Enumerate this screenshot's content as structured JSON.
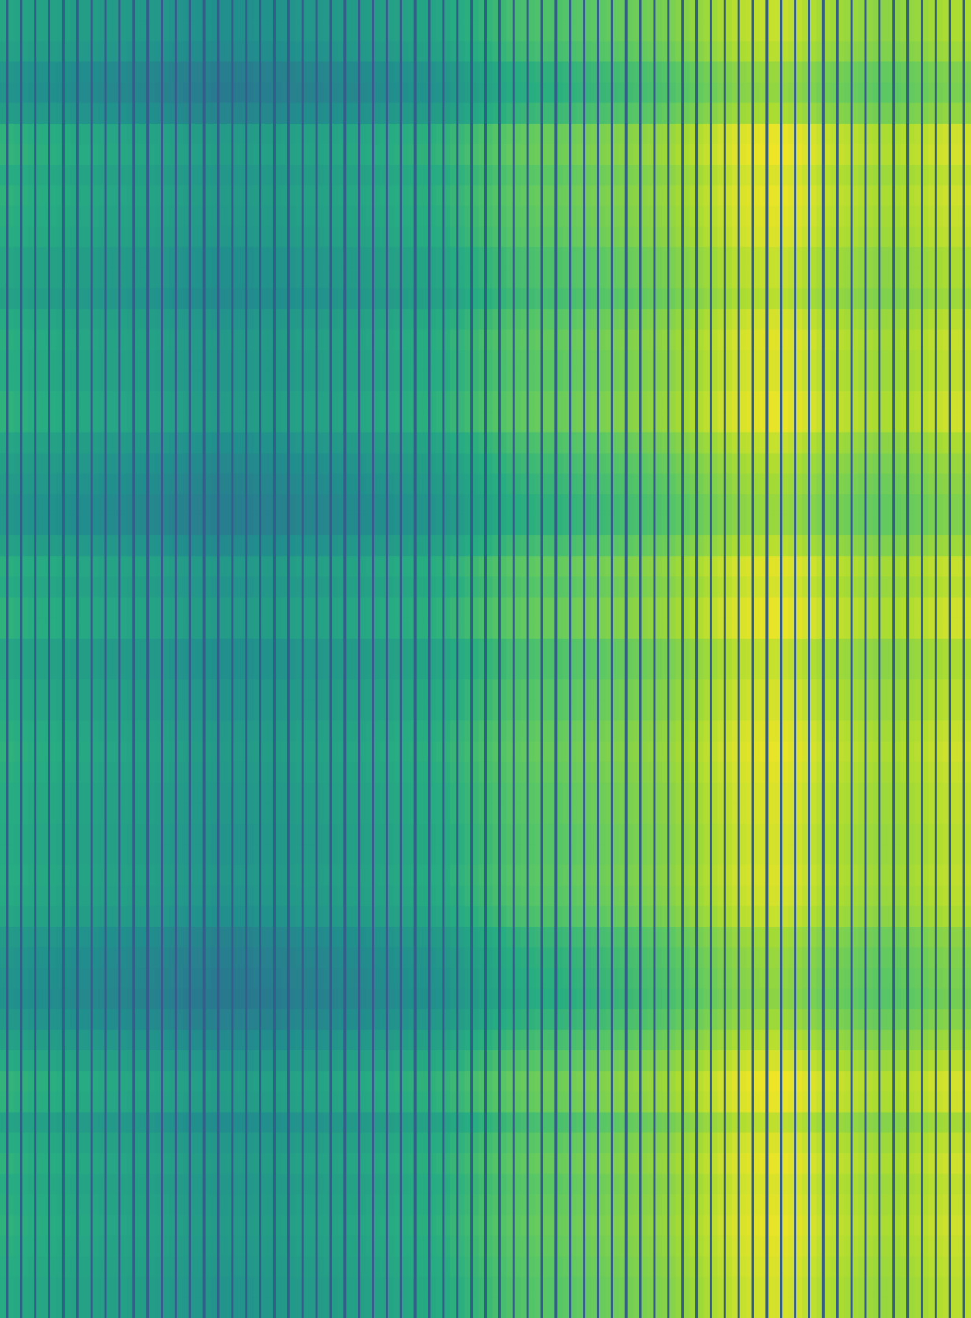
{
  "chart_data": {
    "type": "heatmap",
    "title": "",
    "xlabel": "",
    "ylabel": "",
    "colormap": "viridis",
    "value_range": [
      0,
      1
    ],
    "grid": false,
    "legend": "none",
    "column_profile": [
      0.6,
      0.59,
      0.58,
      0.58,
      0.57,
      0.56,
      0.56,
      0.55,
      0.55,
      0.54,
      0.54,
      0.53,
      0.52,
      0.51,
      0.51,
      0.5,
      0.5,
      0.5,
      0.51,
      0.51,
      0.52,
      0.53,
      0.53,
      0.54,
      0.55,
      0.55,
      0.56,
      0.57,
      0.58,
      0.59,
      0.59,
      0.6,
      0.62,
      0.64,
      0.66,
      0.68,
      0.7,
      0.71,
      0.72,
      0.72,
      0.73,
      0.74,
      0.75,
      0.76,
      0.77,
      0.78,
      0.79,
      0.8,
      0.82,
      0.84,
      0.86,
      0.88,
      0.9,
      0.91,
      0.92,
      0.92,
      0.91,
      0.89,
      0.87,
      0.86,
      0.85,
      0.84,
      0.83,
      0.83,
      0.84,
      0.85,
      0.87,
      0.88,
      0.88
    ],
    "row_profile": [
      0.0,
      0.0,
      -0.02,
      -0.07,
      -0.08,
      -0.04,
      0.05,
      0.06,
      0.03,
      0.05,
      0.04,
      0.03,
      0.0,
      0.0,
      -0.02,
      0.02,
      0.04,
      0.03,
      0.03,
      0.05,
      0.05,
      0.0,
      -0.03,
      -0.05,
      -0.07,
      -0.07,
      -0.02,
      0.04,
      0.02,
      0.05,
      0.05,
      0.0,
      0.0,
      0.02,
      0.02,
      0.04,
      0.05,
      0.04,
      0.03,
      0.03,
      0.02,
      0.02,
      0.03,
      0.02,
      0.0,
      -0.05,
      -0.07,
      -0.08,
      -0.09,
      -0.06,
      -0.02,
      0.02,
      0.06,
      0.05,
      -0.01,
      0.03,
      0.05,
      0.03,
      0.04,
      0.05,
      0.04,
      0.03,
      0.02,
      0.02
    ],
    "separator_value": 0.3
  }
}
